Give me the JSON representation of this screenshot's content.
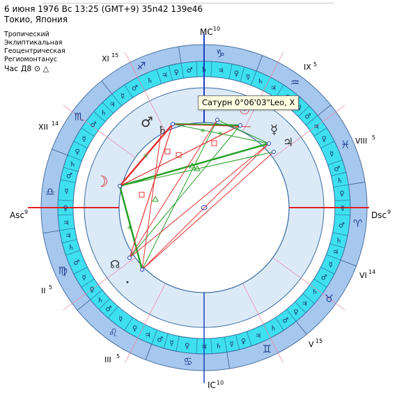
{
  "header": {
    "line1": "6 июня 1976  Вс  13:25 (GMT+9) 35n42  139e46",
    "line2": "Токио, Япония"
  },
  "settings": {
    "zodiac": "Тропический",
    "coords": "Эклиптикальная",
    "center": "Геоцентрическая",
    "houses": "Региомонтанус",
    "hour_label": "Час Д8 ⊙ △"
  },
  "angles": {
    "mc": "MC",
    "mc_deg": "10",
    "ic": "IC",
    "ic_deg": "10",
    "asc": "Asc",
    "asc_deg": "9",
    "dsc": "Dsc",
    "dsc_deg": "9"
  },
  "houses": [
    {
      "name": "XI",
      "deg": "15"
    },
    {
      "name": "IX",
      "deg": "5"
    },
    {
      "name": "XII",
      "deg": "14"
    },
    {
      "name": "VIII",
      "deg": "5"
    },
    {
      "name": "II",
      "deg": "5"
    },
    {
      "name": "VI",
      "deg": "14"
    },
    {
      "name": "III",
      "deg": "5"
    },
    {
      "name": "V",
      "deg": "15"
    }
  ],
  "tooltip": "Сатурн 0°06'03\"Leo, X",
  "colors": {
    "outer_ring": "#a7c8ee",
    "term_ring": "#3ee0f0",
    "inner_disk": "#dceaf8",
    "axis": "#e02020",
    "mc_axis": "#1a3fc0",
    "harmonious": "#26a026",
    "tense": "#e23030"
  }
}
